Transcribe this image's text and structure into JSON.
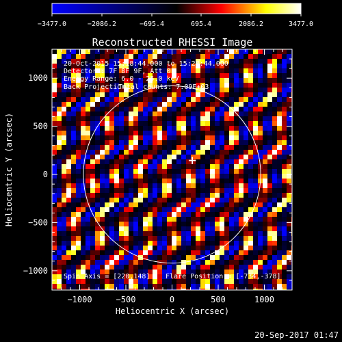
{
  "colorbar": {
    "tick_labels": [
      "−3477.0",
      "−2086.2",
      "−695.4",
      "695.4",
      "2086.2",
      "3477.0"
    ],
    "range": [
      -3477.0,
      3477.0
    ],
    "colors": {
      "min": "#0000ff",
      "mid": "#000000",
      "p40": "#ff0000",
      "p75": "#ffff00",
      "max": "#ffffff"
    }
  },
  "chart_data": {
    "type": "heatmap",
    "title": "Reconstructed RHESSI Image",
    "xlabel": "Heliocentric X (arcsec)",
    "ylabel": "Heliocentric Y (arcsec)",
    "xlim": [
      -1300,
      1300
    ],
    "ylim": [
      -1200,
      1300
    ],
    "xticks": [
      -1000,
      -500,
      0,
      500,
      1000
    ],
    "xtick_labels": [
      "−1000",
      "−500",
      "0",
      "500",
      "1000"
    ],
    "yticks": [
      -1000,
      -500,
      0,
      500,
      1000
    ],
    "ytick_labels": [
      "−1000",
      "−500",
      "0",
      "500",
      "1000"
    ],
    "solar_limb_radius_arcsec": 960,
    "map_center_marker": {
      "x": 220,
      "y": 148,
      "label": "+"
    },
    "annotations": {
      "time_range": "20-Oct-2015 15:18:44.000 to 15:28:44.000",
      "detectors": "Detectors: 7F 8F 9F, Att 0",
      "energy": "Energy Range: 6.0 - 25.0 keV",
      "method": "Back Projection",
      "counts": "Total counts: 7.09E+03",
      "spin_axis": "Spin Axis = [220,148]",
      "flare_position": "Flare Position = [-734,-378]"
    }
  },
  "footer": {
    "timestamp": "20-Sep-2017 01:47"
  }
}
